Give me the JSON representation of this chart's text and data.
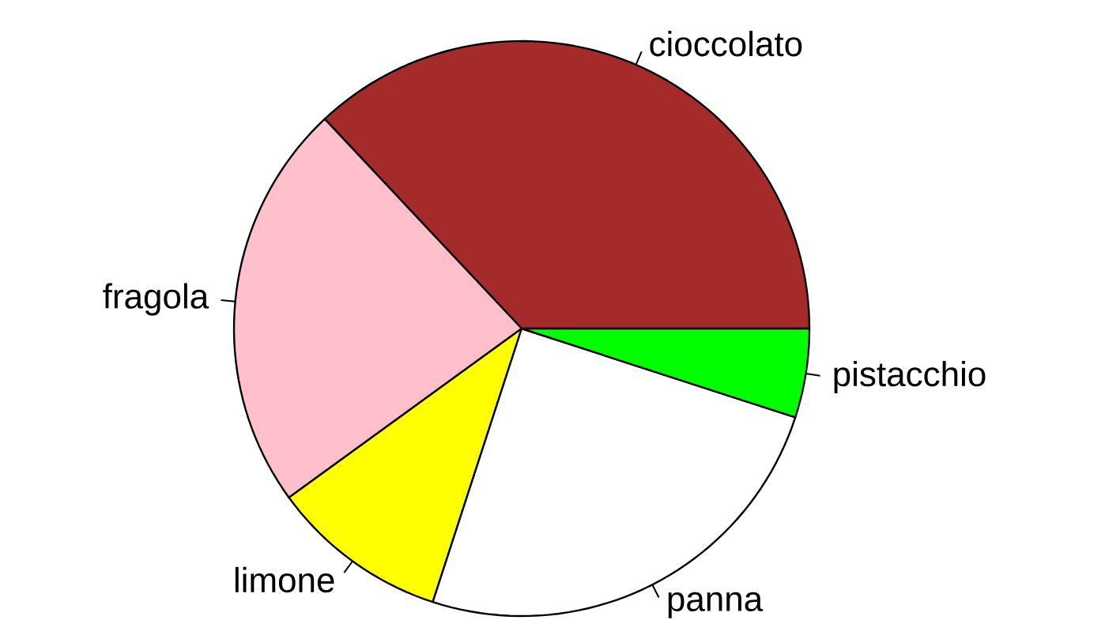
{
  "chart_data": {
    "type": "pie",
    "categories": [
      "cioccolato",
      "fragola",
      "limone",
      "panna",
      "pistacchio"
    ],
    "values": [
      37,
      23,
      10,
      25,
      5
    ],
    "colors": [
      "#a52a2a",
      "#ffc0cb",
      "#ffff00",
      "#ffffff",
      "#00ff00"
    ]
  }
}
